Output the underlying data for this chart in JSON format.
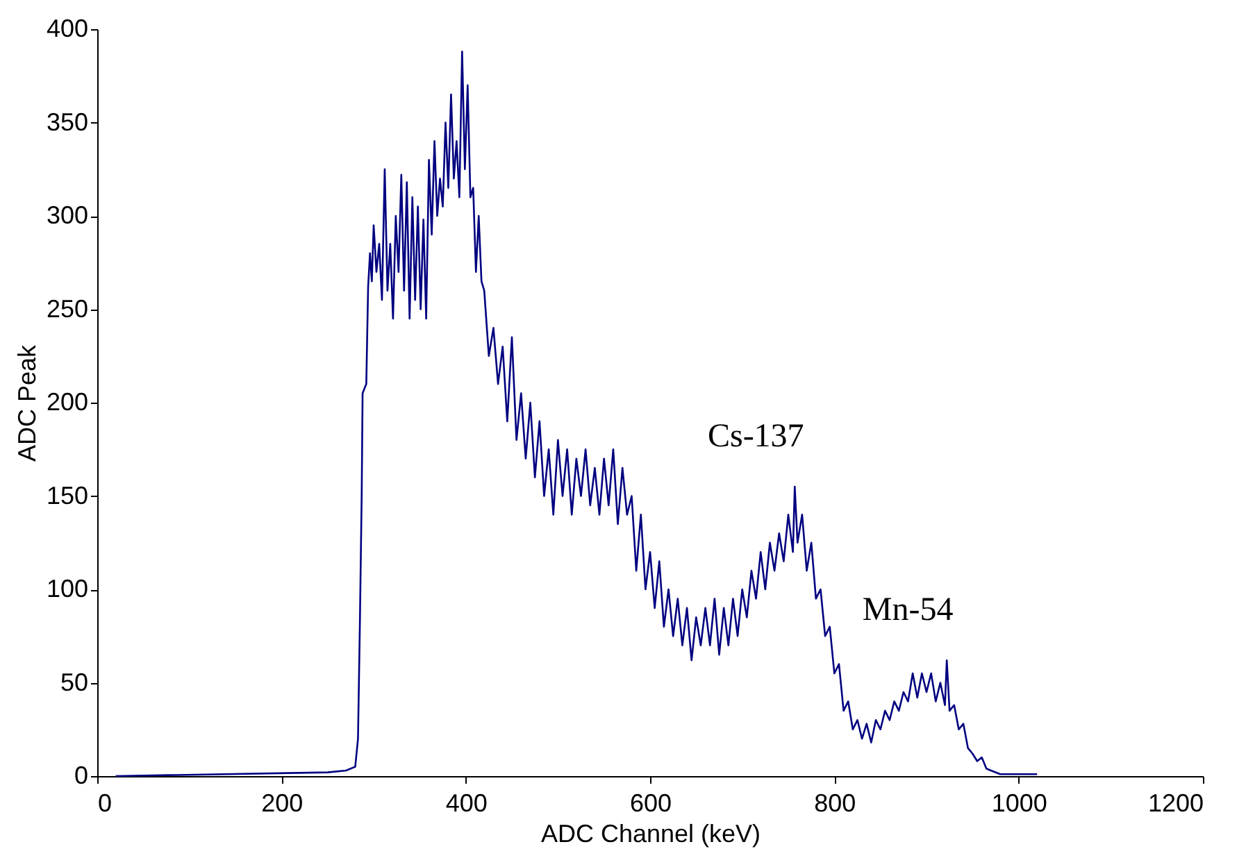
{
  "chart_data": {
    "type": "line",
    "xlabel": "ADC Channel (keV)",
    "ylabel": "ADC Peak",
    "xlim": [
      0,
      1200
    ],
    "xticks": [
      0,
      200,
      400,
      600,
      800,
      1000,
      1200
    ],
    "ylim": [
      0,
      400
    ],
    "yticks": [
      0,
      50,
      100,
      150,
      200,
      250,
      300,
      350,
      400
    ],
    "grid": false,
    "marker": "none",
    "line_style": "solid",
    "annotations": [
      {
        "text": "Cs-137",
        "x": 757,
        "y": 155
      },
      {
        "text": "Mn-54",
        "x": 922,
        "y": 62
      }
    ],
    "x": [
      20,
      250,
      270,
      280,
      283,
      285,
      287,
      288,
      292,
      294,
      296,
      298,
      300,
      303,
      306,
      309,
      312,
      315,
      318,
      321,
      324,
      327,
      330,
      333,
      336,
      339,
      342,
      345,
      348,
      351,
      354,
      357,
      360,
      363,
      366,
      369,
      372,
      375,
      378,
      381,
      384,
      387,
      390,
      393,
      396,
      399,
      402,
      405,
      408,
      411,
      414,
      417,
      420,
      425,
      430,
      435,
      440,
      445,
      450,
      455,
      460,
      465,
      470,
      475,
      480,
      485,
      490,
      495,
      500,
      505,
      510,
      515,
      520,
      525,
      530,
      535,
      540,
      545,
      550,
      555,
      560,
      565,
      570,
      575,
      580,
      585,
      590,
      595,
      600,
      605,
      610,
      615,
      620,
      625,
      630,
      635,
      640,
      645,
      650,
      655,
      660,
      665,
      670,
      675,
      680,
      685,
      690,
      695,
      700,
      705,
      710,
      715,
      720,
      725,
      730,
      735,
      740,
      745,
      750,
      755,
      757,
      760,
      765,
      770,
      775,
      780,
      785,
      790,
      795,
      800,
      805,
      810,
      815,
      820,
      825,
      830,
      835,
      840,
      845,
      850,
      855,
      860,
      865,
      870,
      875,
      880,
      885,
      890,
      895,
      900,
      905,
      910,
      915,
      920,
      922,
      925,
      930,
      935,
      940,
      945,
      950,
      955,
      960,
      965,
      970,
      980,
      1000,
      1020
    ],
    "series": [
      {
        "color": "#000080",
        "values": [
          0,
          2,
          3,
          5,
          20,
          80,
          150,
          205,
          210,
          262,
          280,
          265,
          295,
          270,
          285,
          255,
          325,
          260,
          285,
          245,
          300,
          270,
          322,
          260,
          318,
          245,
          310,
          255,
          305,
          250,
          298,
          245,
          330,
          290,
          340,
          300,
          320,
          305,
          350,
          315,
          365,
          320,
          340,
          310,
          388,
          325,
          370,
          310,
          315,
          270,
          300,
          265,
          260,
          225,
          240,
          210,
          230,
          190,
          235,
          180,
          205,
          170,
          200,
          160,
          190,
          150,
          175,
          140,
          180,
          150,
          175,
          140,
          170,
          150,
          175,
          145,
          165,
          140,
          170,
          145,
          175,
          135,
          165,
          140,
          150,
          110,
          140,
          100,
          120,
          90,
          115,
          80,
          100,
          75,
          95,
          70,
          90,
          62,
          85,
          70,
          90,
          70,
          95,
          65,
          90,
          70,
          95,
          75,
          100,
          85,
          110,
          95,
          120,
          100,
          125,
          110,
          130,
          115,
          140,
          120,
          155,
          125,
          140,
          110,
          125,
          95,
          100,
          75,
          80,
          55,
          60,
          35,
          40,
          25,
          30,
          20,
          28,
          18,
          30,
          25,
          35,
          30,
          40,
          35,
          45,
          40,
          55,
          42,
          55,
          45,
          55,
          40,
          50,
          38,
          62,
          35,
          38,
          25,
          28,
          15,
          12,
          8,
          10,
          4,
          3,
          1,
          1,
          1
        ]
      }
    ]
  }
}
